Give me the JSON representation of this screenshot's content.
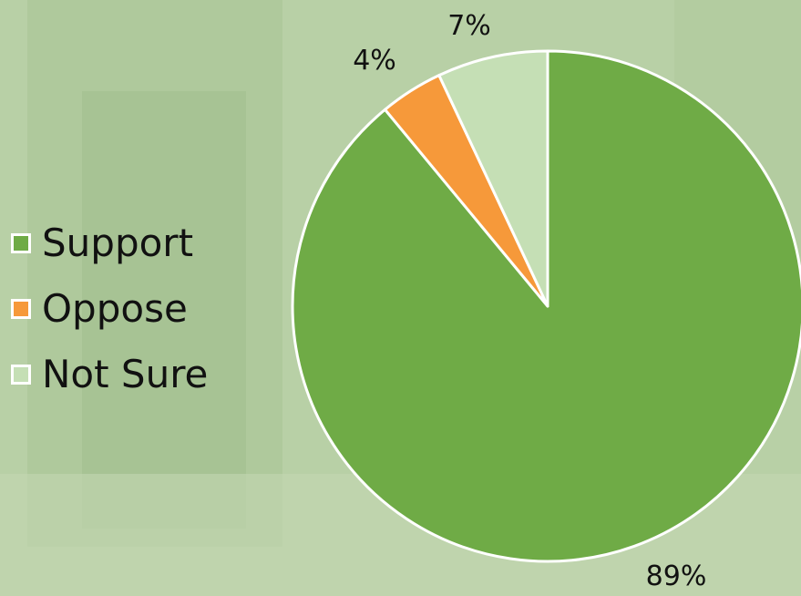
{
  "chart_data": {
    "type": "pie",
    "categories": [
      "Support",
      "Oppose",
      "Not Sure"
    ],
    "values": [
      89,
      4,
      7
    ],
    "labels": [
      "89%",
      "4%",
      "7%"
    ],
    "colors": [
      "#6fab46",
      "#f6993a",
      "#c5dfb5"
    ],
    "start": "12 o'clock",
    "direction": "clockwise",
    "legend_position": "left"
  }
}
